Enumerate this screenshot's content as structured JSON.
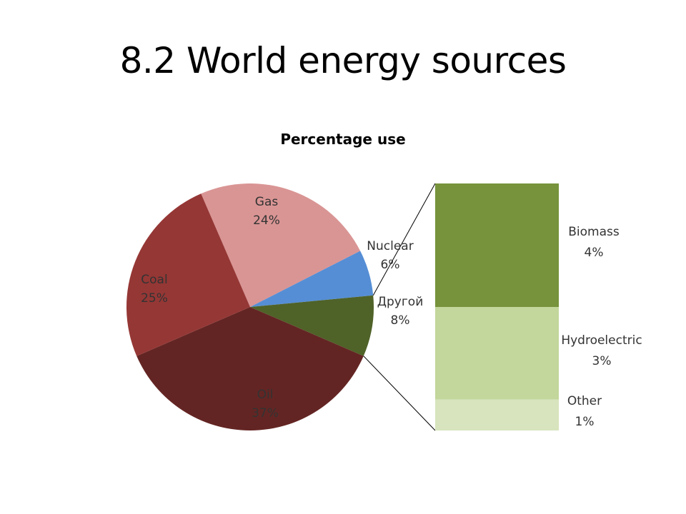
{
  "slide": {
    "title": "8.2 World energy sources"
  },
  "chart_data": {
    "type": "pie",
    "title": "Percentage use",
    "slices": [
      {
        "label": "Gas",
        "value": 24,
        "pct_label": "24%",
        "color": "#D99594"
      },
      {
        "label": "Nuclear",
        "value": 6,
        "pct_label": "6%",
        "color": "#558ED5"
      },
      {
        "label": "Другой",
        "value": 8,
        "pct_label": "8%",
        "color": "#4F6228"
      },
      {
        "label": "Oil",
        "value": 37,
        "pct_label": "37%",
        "color": "#632523"
      },
      {
        "label": "Coal",
        "value": 25,
        "pct_label": "25%",
        "color": "#953735"
      }
    ],
    "breakdown": {
      "of": "Другой",
      "type": "stacked-bar",
      "segments": [
        {
          "label": "Biomass",
          "value": 4,
          "pct_label": "4%",
          "color": "#77933C"
        },
        {
          "label": "Hydroelectric",
          "value": 3,
          "pct_label": "3%",
          "color": "#C3D69B"
        },
        {
          "label": "Other",
          "value": 1,
          "pct_label": "1%",
          "color": "#D7E4BD"
        }
      ]
    },
    "legend": "none",
    "data_labels": "inside/outside slices"
  }
}
